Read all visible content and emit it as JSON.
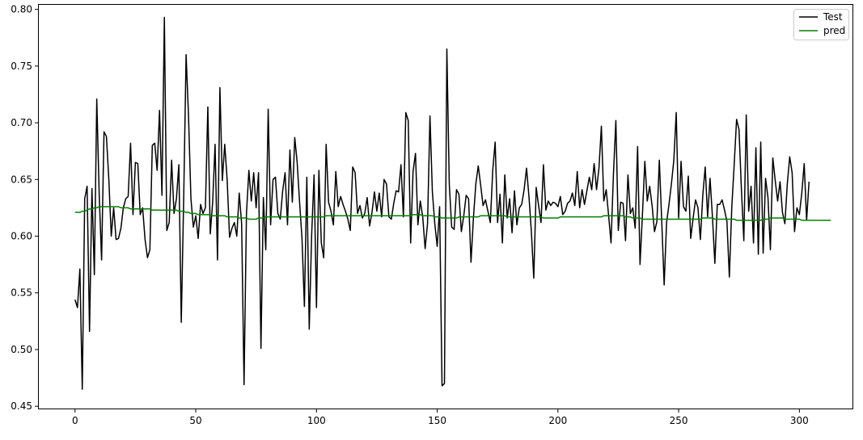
{
  "chart_data": {
    "type": "line",
    "title": "",
    "xlabel": "",
    "ylabel": "",
    "xlim": [
      -15,
      322
    ],
    "ylim": [
      0.448,
      0.804
    ],
    "x_ticks": [
      0,
      50,
      100,
      150,
      200,
      250,
      300
    ],
    "x_tick_labels": [
      "0",
      "50",
      "100",
      "150",
      "200",
      "250",
      "300"
    ],
    "y_ticks": [
      0.45,
      0.5,
      0.55,
      0.6,
      0.65,
      0.7,
      0.75,
      0.8
    ],
    "y_tick_labels": [
      "0.45",
      "0.50",
      "0.55",
      "0.60",
      "0.65",
      "0.70",
      "0.75",
      "0.80"
    ],
    "grid": false,
    "legend_position": "top-right",
    "series": [
      {
        "name": "Test",
        "color": "#000000",
        "x_start": 0,
        "x_step": 1,
        "values": [
          0.544,
          0.537,
          0.571,
          0.465,
          0.633,
          0.644,
          0.516,
          0.642,
          0.566,
          0.721,
          0.637,
          0.579,
          0.692,
          0.688,
          0.65,
          0.6,
          0.625,
          0.597,
          0.598,
          0.607,
          0.625,
          0.633,
          0.635,
          0.682,
          0.619,
          0.665,
          0.664,
          0.619,
          0.625,
          0.597,
          0.581,
          0.588,
          0.68,
          0.682,
          0.658,
          0.711,
          0.636,
          0.793,
          0.605,
          0.612,
          0.667,
          0.62,
          0.633,
          0.663,
          0.524,
          0.633,
          0.76,
          0.706,
          0.633,
          0.608,
          0.618,
          0.598,
          0.628,
          0.62,
          0.625,
          0.714,
          0.602,
          0.63,
          0.681,
          0.579,
          0.731,
          0.649,
          0.681,
          0.65,
          0.599,
          0.607,
          0.612,
          0.6,
          0.638,
          0.611,
          0.469,
          0.62,
          0.658,
          0.631,
          0.656,
          0.625,
          0.656,
          0.501,
          0.634,
          0.588,
          0.712,
          0.61,
          0.65,
          0.652,
          0.62,
          0.615,
          0.64,
          0.656,
          0.61,
          0.676,
          0.63,
          0.687,
          0.665,
          0.63,
          0.598,
          0.538,
          0.652,
          0.518,
          0.601,
          0.654,
          0.537,
          0.658,
          0.594,
          0.581,
          0.681,
          0.63,
          0.622,
          0.61,
          0.657,
          0.626,
          0.635,
          0.628,
          0.622,
          0.615,
          0.605,
          0.661,
          0.656,
          0.62,
          0.627,
          0.616,
          0.62,
          0.634,
          0.609,
          0.621,
          0.639,
          0.622,
          0.638,
          0.617,
          0.65,
          0.646,
          0.617,
          0.615,
          0.629,
          0.64,
          0.639,
          0.663,
          0.617,
          0.709,
          0.702,
          0.594,
          0.657,
          0.673,
          0.61,
          0.631,
          0.617,
          0.589,
          0.611,
          0.706,
          0.639,
          0.611,
          0.591,
          0.626,
          0.468,
          0.47,
          0.765,
          0.646,
          0.608,
          0.606,
          0.641,
          0.637,
          0.604,
          0.618,
          0.636,
          0.633,
          0.577,
          0.616,
          0.646,
          0.662,
          0.645,
          0.627,
          0.632,
          0.622,
          0.612,
          0.658,
          0.683,
          0.612,
          0.637,
          0.594,
          0.654,
          0.616,
          0.633,
          0.603,
          0.64,
          0.61,
          0.625,
          0.628,
          0.641,
          0.66,
          0.635,
          0.604,
          0.563,
          0.643,
          0.627,
          0.612,
          0.663,
          0.623,
          0.631,
          0.627,
          0.63,
          0.629,
          0.626,
          0.635,
          0.619,
          0.622,
          0.629,
          0.631,
          0.638,
          0.627,
          0.657,
          0.625,
          0.641,
          0.628,
          0.64,
          0.652,
          0.641,
          0.664,
          0.641,
          0.66,
          0.697,
          0.631,
          0.641,
          0.618,
          0.594,
          0.655,
          0.702,
          0.605,
          0.63,
          0.629,
          0.596,
          0.654,
          0.62,
          0.625,
          0.607,
          0.679,
          0.575,
          0.619,
          0.666,
          0.631,
          0.644,
          0.627,
          0.604,
          0.613,
          0.667,
          0.613,
          0.557,
          0.612,
          0.628,
          0.646,
          0.667,
          0.709,
          0.616,
          0.666,
          0.626,
          0.622,
          0.653,
          0.598,
          0.616,
          0.632,
          0.625,
          0.597,
          0.636,
          0.661,
          0.617,
          0.651,
          0.617,
          0.576,
          0.628,
          0.628,
          0.632,
          0.623,
          0.613,
          0.564,
          0.625,
          0.663,
          0.703,
          0.694,
          0.641,
          0.596,
          0.707,
          0.622,
          0.644,
          0.594,
          0.678,
          0.584,
          0.683,
          0.585,
          0.651,
          0.634,
          0.588,
          0.669,
          0.649,
          0.631,
          0.648,
          0.621,
          0.611,
          0.646,
          0.67,
          0.656,
          0.604,
          0.625,
          0.619,
          0.638,
          0.664,
          0.614,
          0.648
        ]
      },
      {
        "name": "pred",
        "color": "#008000",
        "x_start": 0,
        "x_step": 1,
        "values": [
          0.621,
          0.621,
          0.621,
          0.622,
          0.622,
          0.623,
          0.624,
          0.624,
          0.625,
          0.625,
          0.626,
          0.626,
          0.626,
          0.626,
          0.626,
          0.626,
          0.626,
          0.626,
          0.626,
          0.625,
          0.625,
          0.625,
          0.625,
          0.624,
          0.624,
          0.624,
          0.624,
          0.624,
          0.624,
          0.624,
          0.624,
          0.624,
          0.623,
          0.623,
          0.623,
          0.623,
          0.623,
          0.623,
          0.623,
          0.623,
          0.623,
          0.623,
          0.623,
          0.622,
          0.622,
          0.622,
          0.621,
          0.621,
          0.62,
          0.62,
          0.62,
          0.619,
          0.619,
          0.619,
          0.619,
          0.619,
          0.619,
          0.618,
          0.618,
          0.618,
          0.618,
          0.618,
          0.618,
          0.617,
          0.617,
          0.617,
          0.617,
          0.617,
          0.616,
          0.616,
          0.616,
          0.616,
          0.615,
          0.615,
          0.615,
          0.615,
          0.616,
          0.616,
          0.616,
          0.617,
          0.617,
          0.617,
          0.617,
          0.617,
          0.617,
          0.617,
          0.617,
          0.617,
          0.617,
          0.617,
          0.617,
          0.617,
          0.617,
          0.617,
          0.617,
          0.617,
          0.617,
          0.617,
          0.617,
          0.617,
          0.617,
          0.617,
          0.617,
          0.617,
          0.618,
          0.618,
          0.618,
          0.618,
          0.618,
          0.618,
          0.618,
          0.618,
          0.618,
          0.618,
          0.618,
          0.618,
          0.618,
          0.618,
          0.618,
          0.618,
          0.618,
          0.618,
          0.618,
          0.618,
          0.618,
          0.618,
          0.618,
          0.618,
          0.618,
          0.618,
          0.618,
          0.618,
          0.618,
          0.618,
          0.618,
          0.618,
          0.618,
          0.618,
          0.618,
          0.618,
          0.619,
          0.619,
          0.619,
          0.619,
          0.618,
          0.618,
          0.618,
          0.618,
          0.618,
          0.617,
          0.617,
          0.617,
          0.616,
          0.616,
          0.616,
          0.616,
          0.616,
          0.616,
          0.616,
          0.617,
          0.617,
          0.617,
          0.617,
          0.617,
          0.617,
          0.617,
          0.617,
          0.617,
          0.618,
          0.618,
          0.618,
          0.618,
          0.618,
          0.618,
          0.618,
          0.618,
          0.618,
          0.618,
          0.618,
          0.617,
          0.617,
          0.617,
          0.617,
          0.617,
          0.617,
          0.617,
          0.617,
          0.617,
          0.617,
          0.617,
          0.617,
          0.617,
          0.617,
          0.617,
          0.616,
          0.616,
          0.616,
          0.616,
          0.616,
          0.616,
          0.616,
          0.617,
          0.617,
          0.617,
          0.617,
          0.617,
          0.617,
          0.617,
          0.617,
          0.617,
          0.617,
          0.617,
          0.617,
          0.617,
          0.617,
          0.617,
          0.617,
          0.617,
          0.617,
          0.618,
          0.618,
          0.618,
          0.618,
          0.618,
          0.618,
          0.618,
          0.618,
          0.618,
          0.617,
          0.617,
          0.617,
          0.616,
          0.616,
          0.616,
          0.616,
          0.615,
          0.615,
          0.615,
          0.615,
          0.615,
          0.615,
          0.615,
          0.615,
          0.615,
          0.615,
          0.615,
          0.615,
          0.615,
          0.615,
          0.615,
          0.615,
          0.615,
          0.615,
          0.615,
          0.615,
          0.615,
          0.615,
          0.615,
          0.615,
          0.615,
          0.616,
          0.616,
          0.616,
          0.616,
          0.616,
          0.615,
          0.615,
          0.615,
          0.615,
          0.615,
          0.615,
          0.615,
          0.615,
          0.615,
          0.614,
          0.614,
          0.614,
          0.614,
          0.614,
          0.614,
          0.614,
          0.614,
          0.614,
          0.614,
          0.614,
          0.615,
          0.615,
          0.615,
          0.616,
          0.616,
          0.616,
          0.616,
          0.616,
          0.616,
          0.615,
          0.615,
          0.615,
          0.615,
          0.615,
          0.615,
          0.615,
          0.614,
          0.614,
          0.614,
          0.614,
          0.614,
          0.614,
          0.614,
          0.614,
          0.614,
          0.614,
          0.614,
          0.614,
          0.614
        ]
      }
    ]
  }
}
